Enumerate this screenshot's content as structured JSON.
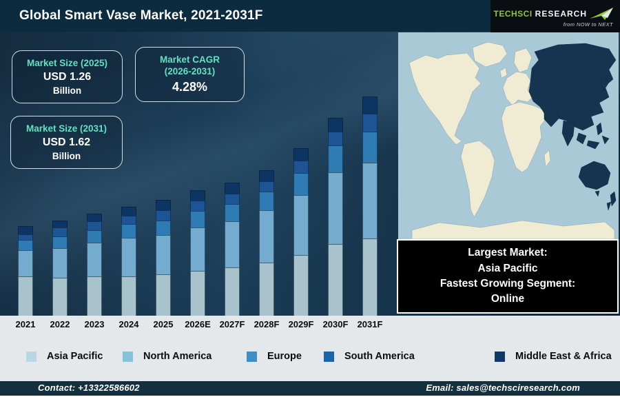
{
  "header": {
    "title": "Global Smart Vase Market, 2021-2031F"
  },
  "logo": {
    "brand_primary": "TechSci",
    "brand_secondary": "Research",
    "tagline": "from NOW to NEXT",
    "brand_green": "#8dc63f"
  },
  "info_boxes": {
    "size_2025": {
      "label": "Market Size (2025)",
      "value": "USD 1.26",
      "unit": "Billion"
    },
    "cagr": {
      "label_line1": "Market CAGR",
      "label_line2": "(2026-2031)",
      "value": "4.28%"
    },
    "size_2031": {
      "label": "Market Size (2031)",
      "value": "USD 1.62",
      "unit": "Billion"
    }
  },
  "map_panel": {
    "highlighted_region": "Asia Pacific",
    "ocean_color": "#a9c9d6",
    "land_color": "#efecd3",
    "highlight_color": "#16344f"
  },
  "callout": {
    "lines": [
      "Largest Market:",
      "Asia Pacific",
      "Fastest Growing Segment:",
      "Online"
    ]
  },
  "chart_data": {
    "type": "bar",
    "stacked": true,
    "title": "Global Smart Vase Market, 2021-2031F",
    "categories": [
      "2021",
      "2022",
      "2023",
      "2024",
      "2025",
      "2026E",
      "2027F",
      "2028F",
      "2029F",
      "2030F",
      "2031F"
    ],
    "unit": "relative segment height (px, no value axis shown)",
    "known_points": {
      "market_size_2025_usd_billion": 1.26,
      "market_size_2031_usd_billion": 1.62,
      "cagr_2026_2031_percent": 4.28
    },
    "legend_position": "bottom",
    "axes": "none",
    "series": [
      {
        "name": "Asia Pacific",
        "color": "#a9c3cd",
        "legend_color": "#b9d6e3",
        "values": [
          57,
          55,
          57,
          57,
          60,
          65,
          70,
          77,
          88,
          104,
          112
        ]
      },
      {
        "name": "North America",
        "color": "#74accf",
        "legend_color": "#85c3dc",
        "values": [
          38,
          43,
          49,
          56,
          57,
          63,
          67,
          76,
          87,
          104,
          110
        ]
      },
      {
        "name": "Europe",
        "color": "#2f7cb5",
        "legend_color": "#3d8ec4",
        "values": [
          15,
          17,
          18,
          20,
          21,
          24,
          25,
          27,
          32,
          39,
          45
        ]
      },
      {
        "name": "South America",
        "color": "#1c5496",
        "legend_color": "#1c64a8",
        "values": [
          8,
          13,
          13,
          12,
          15,
          15,
          15,
          15,
          18,
          20,
          26
        ]
      },
      {
        "name": "Middle East & Africa",
        "color": "#0d3563",
        "legend_color": "#0d3a66",
        "values": [
          12,
          10,
          11,
          13,
          15,
          15,
          16,
          16,
          18,
          20,
          25
        ]
      }
    ]
  },
  "footer": {
    "contact": "Contact: +13322586602",
    "email": "Email: sales@techsciresearch.com"
  }
}
